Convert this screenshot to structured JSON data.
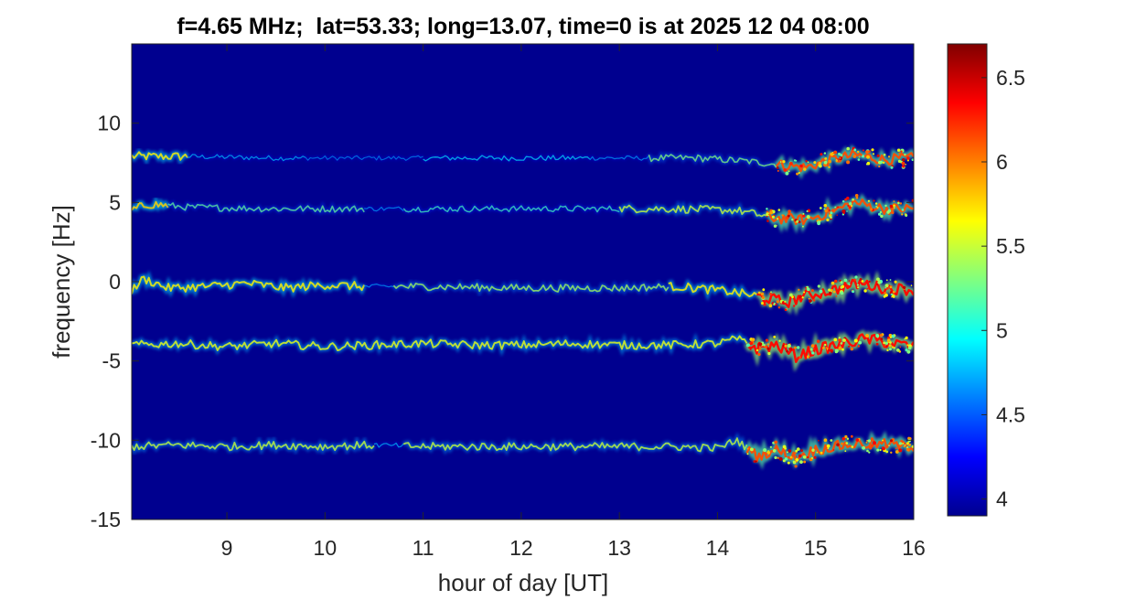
{
  "chart_data": {
    "type": "heatmap",
    "title": "f=4.65 MHz;  lat=53.33; long=13.07, time=0 is at 2025 12 04 08:00",
    "xlabel": "hour of day [UT]",
    "ylabel": "frequency [Hz]",
    "xlim": [
      8.03,
      16
    ],
    "ylim": [
      -15,
      15
    ],
    "xticks": [
      9,
      10,
      11,
      12,
      13,
      14,
      15,
      16
    ],
    "yticks": [
      -15,
      -10,
      -5,
      0,
      5,
      10
    ],
    "colorbar": {
      "clim": [
        3.9,
        6.7
      ],
      "ticks": [
        4,
        4.5,
        5,
        5.5,
        6,
        6.5
      ],
      "colormap": "jet"
    },
    "background_color": "#00008f",
    "series": [
      {
        "line_frequency_hz": 7.9,
        "points": [
          [
            8.03,
            7.9
          ],
          [
            8.6,
            7.9
          ],
          [
            9.5,
            7.8
          ],
          [
            10.3,
            7.8
          ],
          [
            11.5,
            7.8
          ],
          [
            12.3,
            7.8
          ],
          [
            13.3,
            7.8
          ],
          [
            13.8,
            7.8
          ],
          [
            14.3,
            7.6
          ],
          [
            14.6,
            7.4
          ],
          [
            14.9,
            7.2
          ],
          [
            15.1,
            7.6
          ],
          [
            15.4,
            8.0
          ],
          [
            15.7,
            7.7
          ],
          [
            16.0,
            7.8
          ]
        ],
        "segments": [
          [
            8.03,
            8.6,
            0.6
          ],
          [
            8.6,
            9.8,
            0.15
          ],
          [
            9.8,
            11.0,
            0.08
          ],
          [
            11.0,
            12.7,
            0.2
          ],
          [
            12.7,
            13.3,
            0.1
          ],
          [
            13.3,
            14.6,
            0.4
          ],
          [
            14.6,
            16.0,
            0.85
          ]
        ]
      },
      {
        "line_frequency_hz": 4.6,
        "points": [
          [
            8.03,
            4.5
          ],
          [
            8.2,
            4.9
          ],
          [
            8.6,
            4.7
          ],
          [
            9.5,
            4.6
          ],
          [
            10.5,
            4.6
          ],
          [
            11.5,
            4.6
          ],
          [
            12.5,
            4.6
          ],
          [
            13.5,
            4.6
          ],
          [
            14.2,
            4.5
          ],
          [
            14.6,
            4.0
          ],
          [
            14.9,
            3.9
          ],
          [
            15.2,
            4.5
          ],
          [
            15.4,
            5.0
          ],
          [
            15.7,
            4.6
          ],
          [
            16.0,
            4.6
          ]
        ],
        "segments": [
          [
            8.03,
            8.4,
            0.65
          ],
          [
            8.4,
            10.4,
            0.35
          ],
          [
            10.4,
            10.8,
            0.1
          ],
          [
            10.8,
            13.0,
            0.3
          ],
          [
            13.0,
            14.5,
            0.5
          ],
          [
            14.5,
            16.0,
            0.85
          ]
        ]
      },
      {
        "line_frequency_hz": -0.3,
        "points": [
          [
            8.03,
            -0.6
          ],
          [
            8.15,
            0.2
          ],
          [
            8.4,
            -0.4
          ],
          [
            8.8,
            -0.3
          ],
          [
            9.2,
            -0.1
          ],
          [
            9.6,
            -0.4
          ],
          [
            10.0,
            -0.2
          ],
          [
            10.4,
            -0.3
          ],
          [
            11.0,
            -0.3
          ],
          [
            12.0,
            -0.4
          ],
          [
            13.0,
            -0.4
          ],
          [
            13.6,
            -0.3
          ],
          [
            14.1,
            -0.6
          ],
          [
            14.4,
            -0.9
          ],
          [
            14.7,
            -1.3
          ],
          [
            14.9,
            -0.9
          ],
          [
            15.2,
            -0.5
          ],
          [
            15.45,
            -0.1
          ],
          [
            15.7,
            -0.4
          ],
          [
            16.0,
            -0.5
          ]
        ],
        "segments": [
          [
            8.03,
            10.4,
            0.6
          ],
          [
            10.4,
            10.7,
            0.1
          ],
          [
            10.7,
            13.5,
            0.45
          ],
          [
            13.5,
            14.4,
            0.6
          ],
          [
            14.4,
            16.0,
            0.95
          ]
        ]
      },
      {
        "line_frequency_hz": -4.0,
        "points": [
          [
            8.03,
            -4.0
          ],
          [
            8.5,
            -3.9
          ],
          [
            9.0,
            -4.1
          ],
          [
            9.5,
            -3.9
          ],
          [
            10.0,
            -4.1
          ],
          [
            10.5,
            -4.0
          ],
          [
            11.0,
            -3.9
          ],
          [
            11.5,
            -4.0
          ],
          [
            12.0,
            -4.0
          ],
          [
            12.5,
            -3.9
          ],
          [
            13.0,
            -4.0
          ],
          [
            13.5,
            -4.0
          ],
          [
            14.0,
            -3.9
          ],
          [
            14.2,
            -3.6
          ],
          [
            14.4,
            -4.2
          ],
          [
            14.6,
            -4.0
          ],
          [
            14.8,
            -4.7
          ],
          [
            15.0,
            -4.3
          ],
          [
            15.3,
            -3.9
          ],
          [
            15.5,
            -3.6
          ],
          [
            15.8,
            -3.9
          ],
          [
            16.0,
            -4.1
          ]
        ],
        "segments": [
          [
            8.03,
            14.3,
            0.55
          ],
          [
            14.3,
            16.0,
            0.95
          ]
        ]
      },
      {
        "line_frequency_hz": -10.4,
        "points": [
          [
            8.03,
            -10.4
          ],
          [
            8.5,
            -10.3
          ],
          [
            9.0,
            -10.4
          ],
          [
            9.5,
            -10.3
          ],
          [
            10.0,
            -10.4
          ],
          [
            10.5,
            -10.3
          ],
          [
            11.0,
            -10.4
          ],
          [
            11.5,
            -10.4
          ],
          [
            12.0,
            -10.4
          ],
          [
            12.5,
            -10.4
          ],
          [
            13.0,
            -10.4
          ],
          [
            13.5,
            -10.4
          ],
          [
            14.0,
            -10.5
          ],
          [
            14.2,
            -10.0
          ],
          [
            14.4,
            -11.0
          ],
          [
            14.6,
            -10.6
          ],
          [
            14.8,
            -11.1
          ],
          [
            15.0,
            -10.6
          ],
          [
            15.3,
            -10.3
          ],
          [
            15.6,
            -10.2
          ],
          [
            16.0,
            -10.4
          ]
        ],
        "segments": [
          [
            8.03,
            10.5,
            0.5
          ],
          [
            10.5,
            10.8,
            0.15
          ],
          [
            10.8,
            14.3,
            0.5
          ],
          [
            14.3,
            16.0,
            0.85
          ]
        ]
      }
    ]
  }
}
